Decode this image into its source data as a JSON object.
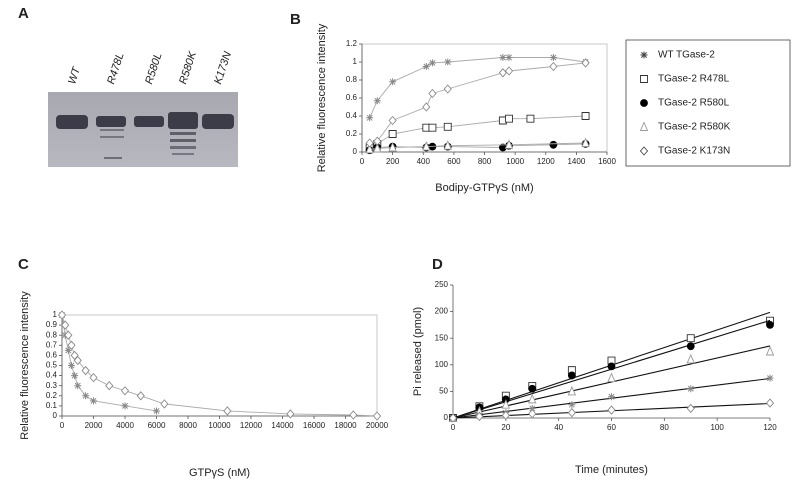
{
  "gel": {
    "panel": "A",
    "lanes": [
      "WT",
      "R478L",
      "R580L",
      "R580K",
      "K173N"
    ]
  },
  "chart_data": [
    {
      "type": "line",
      "panel": "B",
      "frame": true,
      "x_label": "Bodipy-GTPγS (nM)",
      "y_label": "Relative fluorescence intensity",
      "xlim": [
        0,
        1600
      ],
      "xticks": [
        0,
        200,
        400,
        600,
        800,
        1000,
        1200,
        1400,
        1600
      ],
      "ylim": [
        0,
        1.2
      ],
      "yticks": [
        0,
        0.2,
        0.4,
        0.6,
        0.8,
        1,
        1.2
      ],
      "series": [
        {
          "name": "WT TGase-2",
          "marker": "star",
          "color": "#888888",
          "x": [
            50,
            100,
            200,
            420,
            460,
            560,
            920,
            960,
            1250,
            1460
          ],
          "values": [
            0.38,
            0.57,
            0.78,
            0.95,
            0.99,
            1.0,
            1.05,
            1.05,
            1.05,
            1.0
          ]
        },
        {
          "name": "TGase-2 R478L",
          "marker": "square",
          "color": "#333333",
          "x": [
            50,
            100,
            200,
            420,
            460,
            560,
            920,
            960,
            1100,
            1460
          ],
          "values": [
            0.05,
            0.09,
            0.2,
            0.27,
            0.27,
            0.28,
            0.35,
            0.37,
            0.37,
            0.4
          ]
        },
        {
          "name": "TGase-2 R580L",
          "marker": "circle",
          "color": "#000000",
          "x": [
            50,
            100,
            200,
            420,
            460,
            560,
            920,
            960,
            1250,
            1460
          ],
          "values": [
            0.02,
            0.05,
            0.06,
            0.05,
            0.06,
            0.06,
            0.05,
            0.07,
            0.08,
            0.09
          ]
        },
        {
          "name": "TGase-2 R580K",
          "marker": "triangle",
          "color": "#999999",
          "x": [
            50,
            100,
            200,
            420,
            560,
            960,
            1460
          ],
          "values": [
            0.03,
            0.04,
            0.05,
            0.06,
            0.07,
            0.08,
            0.1
          ]
        },
        {
          "name": "TGase-2 K173N",
          "marker": "diamond",
          "color": "#888888",
          "x": [
            50,
            100,
            200,
            420,
            460,
            560,
            920,
            960,
            1250,
            1460
          ],
          "values": [
            0.1,
            0.12,
            0.35,
            0.5,
            0.65,
            0.7,
            0.88,
            0.9,
            0.95,
            0.99
          ]
        }
      ]
    },
    {
      "type": "line",
      "panel": "C",
      "frame": true,
      "x_label": "GTPγS (nM)",
      "y_label": "Relative fluorescence intensity",
      "xlim": [
        0,
        20000
      ],
      "xticks": [
        0,
        2000,
        4000,
        6000,
        8000,
        10000,
        12000,
        14000,
        16000,
        18000,
        20000
      ],
      "ylim": [
        0,
        1
      ],
      "yticks": [
        0,
        0.1,
        0.2,
        0.3,
        0.4,
        0.5,
        0.6,
        0.7,
        0.8,
        0.9,
        1
      ],
      "series": [
        {
          "marker": "star",
          "color": "#888888",
          "x": [
            0,
            200,
            400,
            600,
            800,
            1000,
            1500,
            2000,
            4000,
            6000
          ],
          "values": [
            1,
            0.8,
            0.65,
            0.5,
            0.4,
            0.3,
            0.2,
            0.15,
            0.1,
            0.05
          ]
        },
        {
          "marker": "diamond",
          "color": "#888888",
          "x": [
            0,
            200,
            400,
            600,
            800,
            1000,
            1500,
            2000,
            3000,
            4000,
            5000,
            6500,
            10500,
            14500,
            18500,
            20000
          ],
          "values": [
            1,
            0.9,
            0.8,
            0.7,
            0.6,
            0.55,
            0.45,
            0.38,
            0.3,
            0.25,
            0.2,
            0.12,
            0.05,
            0.02,
            0.01,
            0
          ]
        }
      ]
    },
    {
      "type": "scatter",
      "panel": "D",
      "frame": false,
      "trendline": true,
      "x_label": "Time (minutes)",
      "y_label": "Pi released (pmol)",
      "xlim": [
        0,
        120
      ],
      "xticks": [
        0,
        20,
        40,
        60,
        80,
        100,
        120
      ],
      "ylim": [
        0,
        250
      ],
      "yticks": [
        0,
        50,
        100,
        150,
        200,
        250
      ],
      "series": [
        {
          "marker": "square",
          "color": "#333333",
          "x": [
            0,
            10,
            20,
            30,
            45,
            60,
            90,
            120
          ],
          "values": [
            0,
            22,
            42,
            60,
            90,
            108,
            150,
            183
          ]
        },
        {
          "marker": "circle",
          "color": "#000000",
          "x": [
            0,
            10,
            20,
            30,
            45,
            60,
            90,
            120
          ],
          "values": [
            0,
            20,
            35,
            55,
            80,
            97,
            135,
            175
          ]
        },
        {
          "marker": "triangle",
          "color": "#999999",
          "x": [
            0,
            10,
            20,
            30,
            45,
            60,
            90,
            120
          ],
          "values": [
            0,
            12,
            25,
            35,
            50,
            75,
            110,
            125
          ]
        },
        {
          "marker": "star",
          "color": "#888888",
          "x": [
            0,
            10,
            20,
            30,
            45,
            60,
            90,
            120
          ],
          "values": [
            0,
            5,
            10,
            18,
            25,
            40,
            55,
            75
          ]
        },
        {
          "marker": "diamond",
          "color": "#888888",
          "x": [
            0,
            10,
            20,
            30,
            45,
            60,
            90,
            120
          ],
          "values": [
            0,
            3,
            5,
            8,
            10,
            15,
            18,
            28
          ]
        }
      ]
    }
  ]
}
